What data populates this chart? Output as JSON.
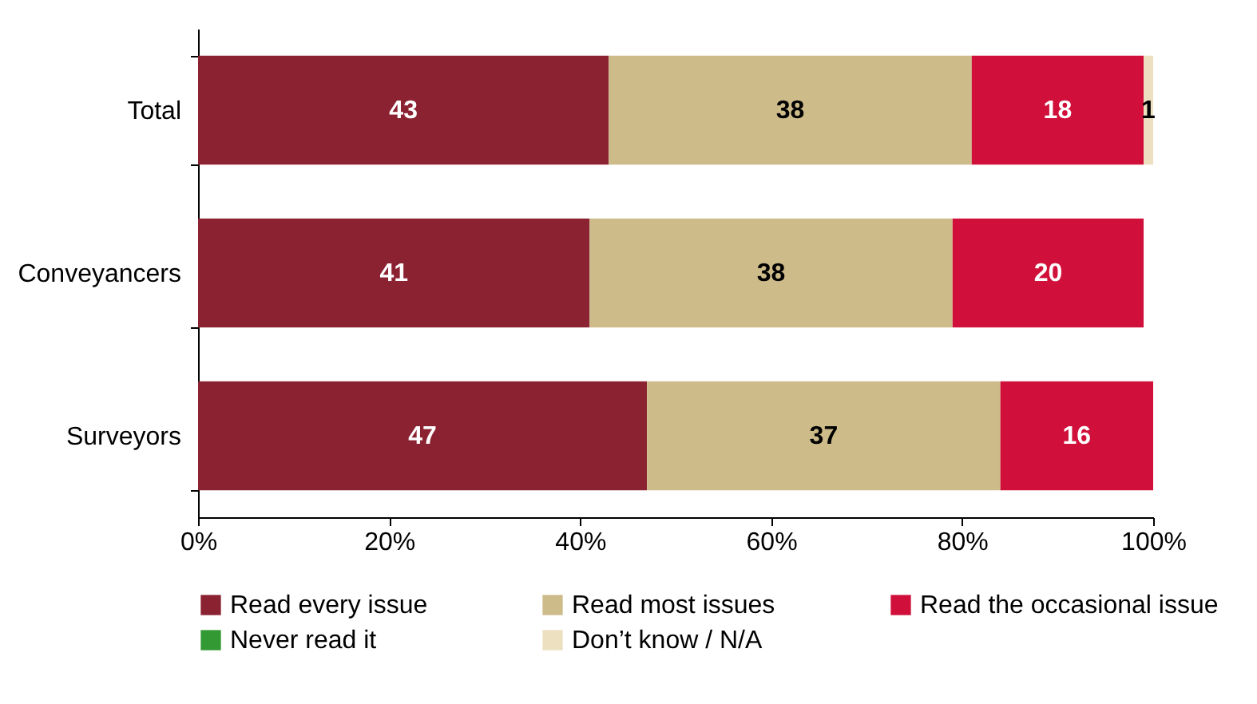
{
  "chart_data": {
    "type": "bar",
    "orientation": "horizontal",
    "stacked": true,
    "categories": [
      "Total",
      "Conveyancers",
      "Surveyors"
    ],
    "series": [
      {
        "name": "Read every issue",
        "color": "#8b2232",
        "values": [
          43,
          41,
          47
        ],
        "value_labels": [
          "43",
          "41",
          "47"
        ]
      },
      {
        "name": "Read most issues",
        "color": "#cdbb8a",
        "values": [
          38,
          38,
          37
        ],
        "value_labels": [
          "38",
          "38",
          "37"
        ]
      },
      {
        "name": "Read the occasional issue",
        "color": "#d0103a",
        "values": [
          18,
          20,
          16
        ],
        "value_labels": [
          "18",
          "20",
          "16"
        ]
      },
      {
        "name": "Never read it",
        "color": "#339933",
        "values": [
          0,
          0,
          0
        ],
        "value_labels": [
          null,
          null,
          null
        ]
      },
      {
        "name": "Don’t know / N/A",
        "color": "#ede0c0",
        "values": [
          1,
          0,
          0
        ],
        "value_labels": [
          "1",
          null,
          null
        ]
      }
    ],
    "xlim": [
      0,
      100
    ],
    "xticks": [
      {
        "value": 0,
        "label": "0%"
      },
      {
        "value": 20,
        "label": "20%"
      },
      {
        "value": 40,
        "label": "40%"
      },
      {
        "value": 60,
        "label": "60%"
      },
      {
        "value": 80,
        "label": "80%"
      },
      {
        "value": 100,
        "label": "100%"
      }
    ],
    "grid": false,
    "legend": "bottom"
  }
}
